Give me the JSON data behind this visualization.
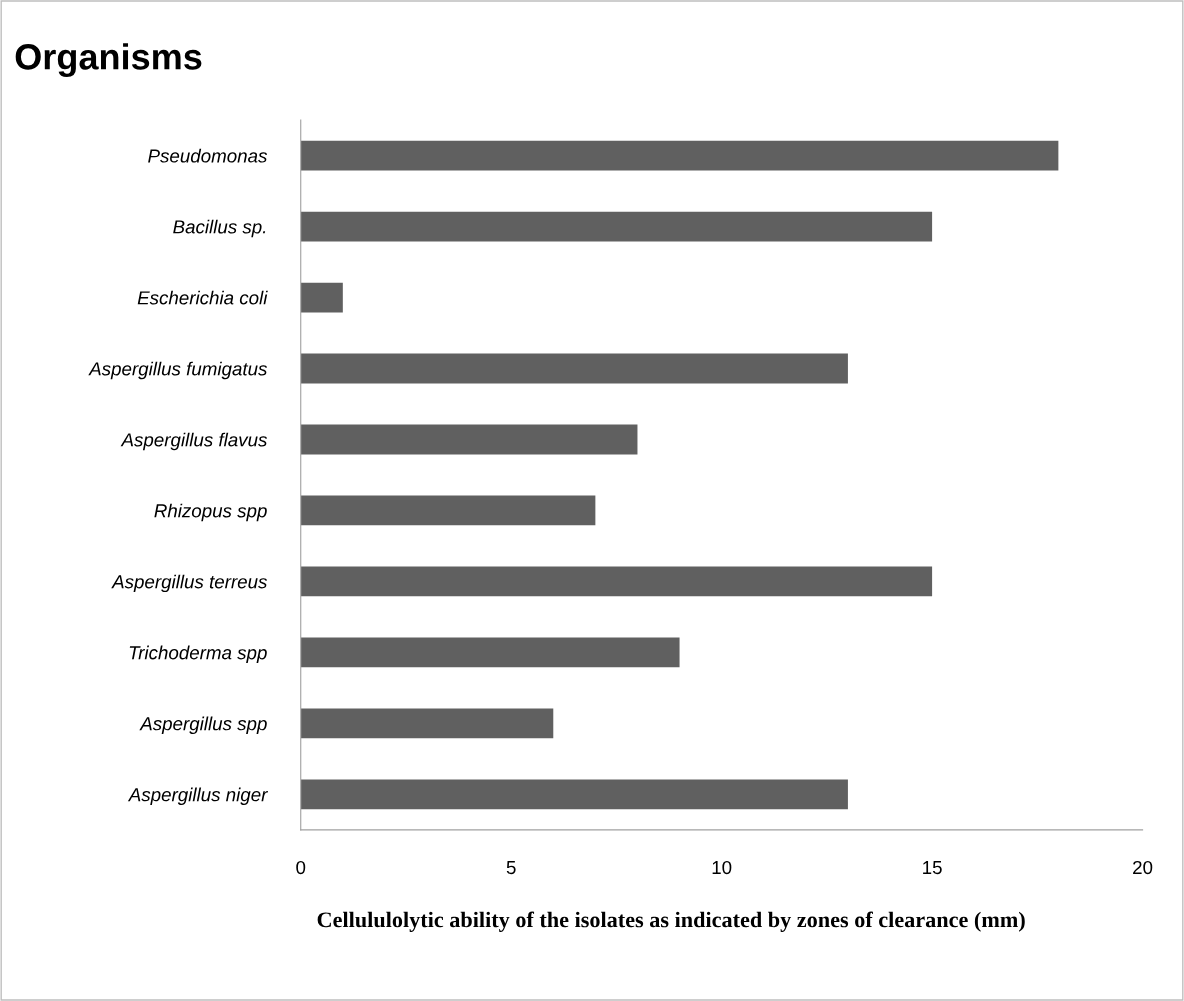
{
  "chart_data": {
    "type": "bar",
    "orientation": "horizontal",
    "ylabel": "Organisms",
    "xlabel": "Cellululolytic ability of the isolates as indicated by zones of clearance (mm)",
    "categories": [
      "Pseudomonas",
      "Bacillus sp.",
      "Escherichia coli",
      "Aspergillus fumigatus",
      "Aspergillus flavus",
      "Rhizopus spp",
      "Aspergillus terreus",
      "Trichoderma spp",
      "Aspergillus spp",
      "Aspergillus niger"
    ],
    "values": [
      18,
      15,
      1,
      13,
      8,
      7,
      15,
      9,
      6,
      13
    ],
    "color": "#606060",
    "xlim": [
      0,
      20
    ],
    "xticks": [
      0,
      5,
      10,
      15,
      20
    ],
    "grid": false,
    "legend": false
  }
}
